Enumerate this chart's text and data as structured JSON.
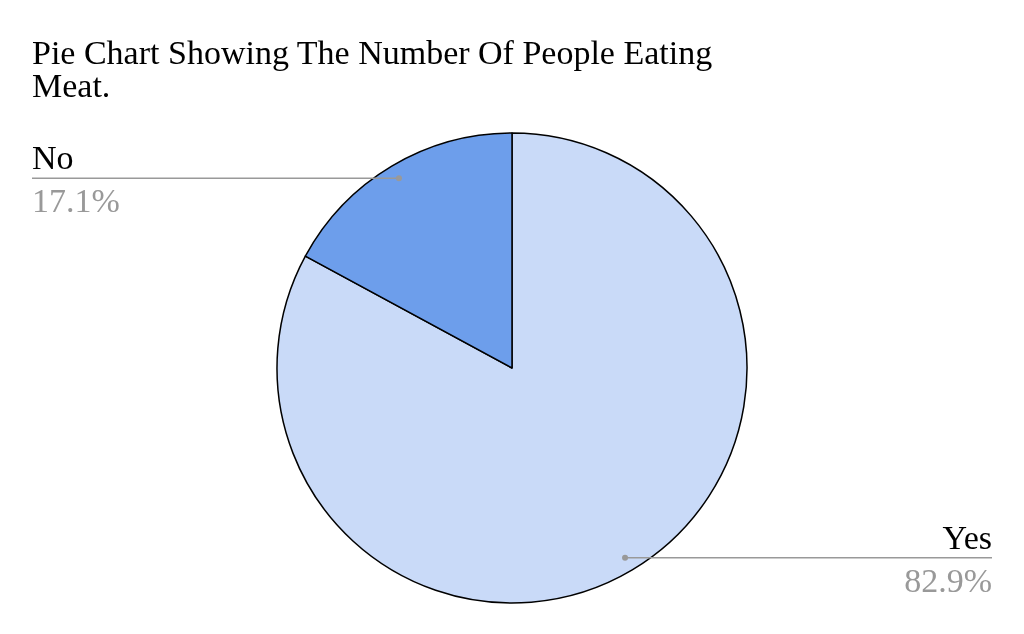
{
  "chart_data": {
    "type": "pie",
    "title": "Pie Chart Showing The Number Of People Eating Meat.",
    "categories": [
      "Yes",
      "No"
    ],
    "values": [
      82.9,
      17.1
    ],
    "value_labels": [
      "82.9%",
      "17.1%"
    ],
    "colors": [
      "#c9daf8",
      "#6d9eeb"
    ]
  }
}
